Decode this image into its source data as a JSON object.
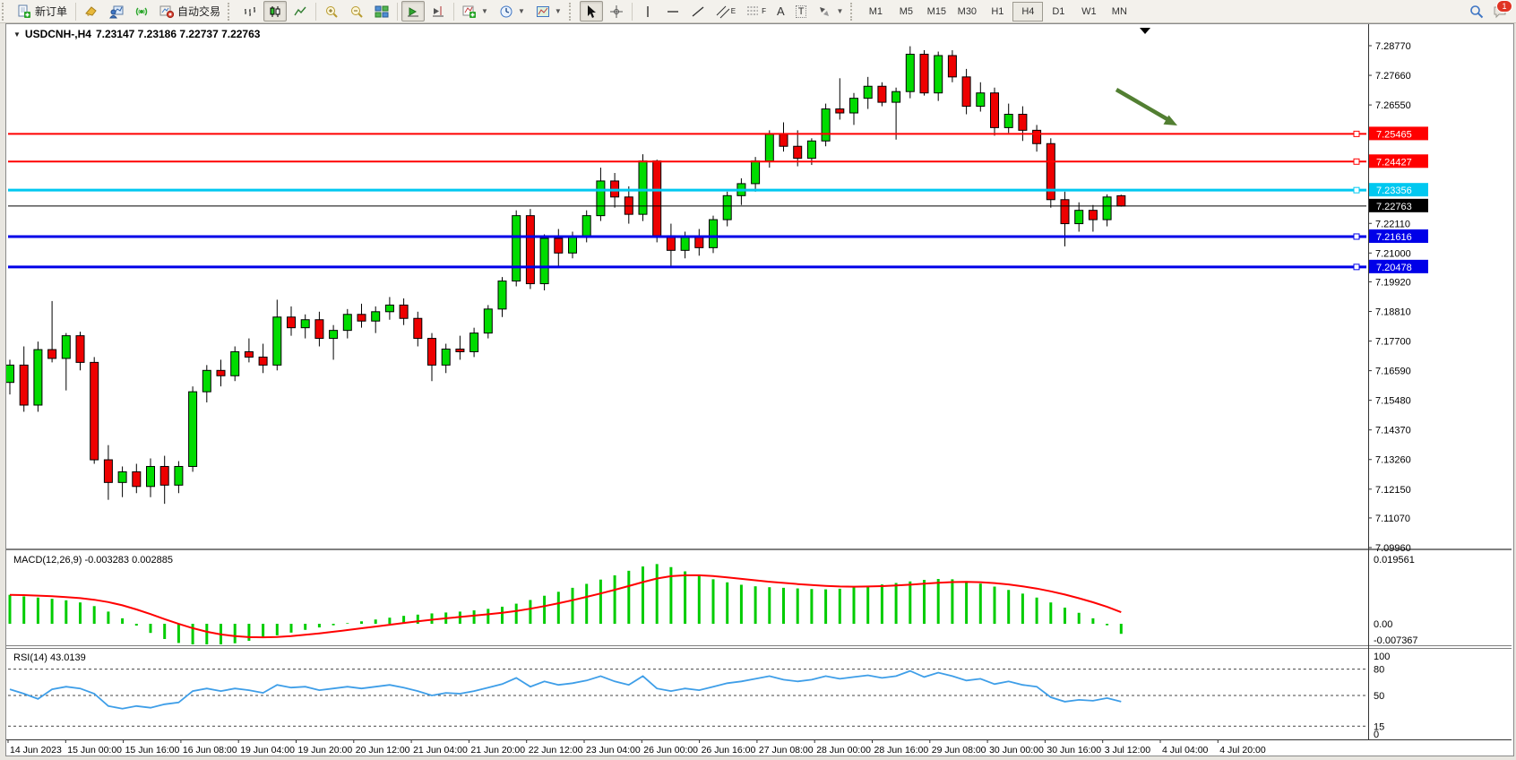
{
  "toolbar": {
    "new_order_label": "新订单",
    "autotrading_label": "自动交易",
    "text_tool_letter": "A",
    "textlabel_tool_letter": "T",
    "channel_tool_letter": "E",
    "fibo_tool_letter": "F",
    "timeframes": [
      "M1",
      "M5",
      "M15",
      "M30",
      "H1",
      "H4",
      "D1",
      "W1",
      "MN"
    ],
    "active_timeframe": "H4",
    "notification_count": "1"
  },
  "chart_data": {
    "type": "candlestick",
    "title": {
      "symbol_period": "USDCNH-,H4",
      "open": "7.23147",
      "high": "7.23186",
      "low": "7.22737",
      "close": "7.22763"
    },
    "price_axis_ticks": [
      "7.28770",
      "7.27660",
      "7.26550",
      "7.22110",
      "7.21000",
      "7.19920",
      "7.18810",
      "7.17700",
      "7.16590",
      "7.15480",
      "7.14370",
      "7.13260",
      "7.12150",
      "7.11070",
      "7.09960"
    ],
    "hlines": [
      {
        "value": "7.25465",
        "color": "#FF0000",
        "thickness": 2
      },
      {
        "value": "7.24427",
        "color": "#FF0000",
        "thickness": 2
      },
      {
        "value": "7.23356",
        "color": "#00C8F0",
        "thickness": 3
      },
      {
        "value": "7.22763",
        "color": "#000000",
        "thickness": 1
      },
      {
        "value": "7.21616",
        "color": "#0000E8",
        "thickness": 3
      },
      {
        "value": "7.20478",
        "color": "#0000E8",
        "thickness": 3
      }
    ],
    "time_axis": [
      "14 Jun 2023",
      "15 Jun 00:00",
      "15 Jun 16:00",
      "16 Jun 08:00",
      "19 Jun 04:00",
      "19 Jun 20:00",
      "20 Jun 12:00",
      "21 Jun 04:00",
      "21 Jun 20:00",
      "22 Jun 12:00",
      "23 Jun 04:00",
      "26 Jun 00:00",
      "26 Jun 16:00",
      "27 Jun 08:00",
      "28 Jun 00:00",
      "28 Jun 16:00",
      "29 Jun 08:00",
      "30 Jun 00:00",
      "30 Jun 16:00",
      "3 Jul 12:00",
      "4 Jul 04:00",
      "4 Jul 20:00"
    ],
    "colors": {
      "bull": "#00DC00",
      "bear": "#EE0000",
      "wick": "#000000",
      "macd_hist": "#00CC00",
      "macd_signal": "#FF0000",
      "rsi_line": "#3E9EE8",
      "arrow": "#527F32"
    },
    "candles": [
      [
        7.1615,
        7.17,
        7.157,
        7.168
      ],
      [
        7.168,
        7.175,
        7.1505,
        7.153
      ],
      [
        7.153,
        7.1768,
        7.1505,
        7.1738
      ],
      [
        7.1738,
        7.192,
        7.169,
        7.1705
      ],
      [
        7.1705,
        7.18,
        7.1585,
        7.179
      ],
      [
        7.179,
        7.1805,
        7.166,
        7.169
      ],
      [
        7.169,
        7.171,
        7.131,
        7.1325
      ],
      [
        7.1325,
        7.138,
        7.1175,
        7.124
      ],
      [
        7.124,
        7.13,
        7.1185,
        7.128
      ],
      [
        7.128,
        7.131,
        7.12,
        7.1225
      ],
      [
        7.1225,
        7.133,
        7.1185,
        7.13
      ],
      [
        7.13,
        7.134,
        7.116,
        7.123
      ],
      [
        7.123,
        7.132,
        7.12,
        7.13
      ],
      [
        7.13,
        7.16,
        7.128,
        7.158
      ],
      [
        7.158,
        7.168,
        7.154,
        7.166
      ],
      [
        7.166,
        7.17,
        7.16,
        7.164
      ],
      [
        7.164,
        7.175,
        7.162,
        7.173
      ],
      [
        7.173,
        7.178,
        7.169,
        7.171
      ],
      [
        7.171,
        7.176,
        7.165,
        7.168
      ],
      [
        7.168,
        7.1925,
        7.166,
        7.186
      ],
      [
        7.186,
        7.19,
        7.179,
        7.182
      ],
      [
        7.182,
        7.187,
        7.178,
        7.185
      ],
      [
        7.185,
        7.188,
        7.175,
        7.178
      ],
      [
        7.178,
        7.183,
        7.17,
        7.181
      ],
      [
        7.181,
        7.189,
        7.178,
        7.187
      ],
      [
        7.187,
        7.191,
        7.182,
        7.1845
      ],
      [
        7.1845,
        7.19,
        7.18,
        7.188
      ],
      [
        7.188,
        7.1935,
        7.185,
        7.1905
      ],
      [
        7.1905,
        7.193,
        7.183,
        7.1855
      ],
      [
        7.1855,
        7.188,
        7.175,
        7.178
      ],
      [
        7.178,
        7.18,
        7.162,
        7.168
      ],
      [
        7.168,
        7.176,
        7.165,
        7.174
      ],
      [
        7.174,
        7.179,
        7.17,
        7.173
      ],
      [
        7.173,
        7.182,
        7.171,
        7.18
      ],
      [
        7.18,
        7.1905,
        7.178,
        7.189
      ],
      [
        7.189,
        7.201,
        7.186,
        7.1995
      ],
      [
        7.1995,
        7.226,
        7.1975,
        7.224
      ],
      [
        7.224,
        7.2265,
        7.1965,
        7.1985
      ],
      [
        7.1985,
        7.217,
        7.196,
        7.2155
      ],
      [
        7.2155,
        7.219,
        7.205,
        7.21
      ],
      [
        7.21,
        7.218,
        7.208,
        7.216
      ],
      [
        7.216,
        7.226,
        7.214,
        7.224
      ],
      [
        7.224,
        7.242,
        7.222,
        7.237
      ],
      [
        7.237,
        7.24,
        7.227,
        7.231
      ],
      [
        7.231,
        7.235,
        7.221,
        7.2245
      ],
      [
        7.2245,
        7.247,
        7.222,
        7.2445
      ],
      [
        7.2445,
        7.245,
        7.214,
        7.2165
      ],
      [
        7.2165,
        7.221,
        7.205,
        7.211
      ],
      [
        7.211,
        7.218,
        7.208,
        7.216
      ],
      [
        7.216,
        7.219,
        7.209,
        7.212
      ],
      [
        7.212,
        7.224,
        7.21,
        7.2225
      ],
      [
        7.2225,
        7.233,
        7.22,
        7.2315
      ],
      [
        7.2315,
        7.238,
        7.228,
        7.236
      ],
      [
        7.236,
        7.246,
        7.233,
        7.2445
      ],
      [
        7.2445,
        7.256,
        7.242,
        7.2545
      ],
      [
        7.2545,
        7.259,
        7.248,
        7.25
      ],
      [
        7.25,
        7.256,
        7.2425,
        7.2455
      ],
      [
        7.2455,
        7.253,
        7.243,
        7.252
      ],
      [
        7.252,
        7.266,
        7.25,
        7.264
      ],
      [
        7.264,
        7.2755,
        7.26,
        7.2625
      ],
      [
        7.2625,
        7.27,
        7.258,
        7.268
      ],
      [
        7.268,
        7.276,
        7.264,
        7.2725
      ],
      [
        7.2725,
        7.274,
        7.265,
        7.2665
      ],
      [
        7.2665,
        7.272,
        7.2525,
        7.2705
      ],
      [
        7.2705,
        7.2875,
        7.268,
        7.2845
      ],
      [
        7.2845,
        7.286,
        7.269,
        7.27
      ],
      [
        7.27,
        7.2855,
        7.267,
        7.284
      ],
      [
        7.284,
        7.286,
        7.274,
        7.276
      ],
      [
        7.276,
        7.279,
        7.262,
        7.265
      ],
      [
        7.265,
        7.274,
        7.263,
        7.27
      ],
      [
        7.27,
        7.272,
        7.254,
        7.257
      ],
      [
        7.257,
        7.266,
        7.255,
        7.262
      ],
      [
        7.262,
        7.265,
        7.252,
        7.256
      ],
      [
        7.256,
        7.258,
        7.248,
        7.251
      ],
      [
        7.251,
        7.253,
        7.227,
        7.23
      ],
      [
        7.23,
        7.233,
        7.2125,
        7.221
      ],
      [
        7.221,
        7.229,
        7.218,
        7.226
      ],
      [
        7.226,
        7.228,
        7.218,
        7.2225
      ],
      [
        7.2225,
        7.232,
        7.22,
        7.231
      ],
      [
        7.23147,
        7.23186,
        7.22737,
        7.22763
      ]
    ],
    "macd": {
      "label": "MACD(12,26,9) -0.003283 0.002885",
      "axis": [
        "0.019561",
        "0.00",
        "-0.007367"
      ],
      "values": [
        0.0095,
        0.009,
        0.0086,
        0.0082,
        0.0077,
        0.007,
        0.0058,
        0.004,
        0.0018,
        -0.0006,
        -0.003,
        -0.005,
        -0.0063,
        -0.0071,
        -0.0073,
        -0.007,
        -0.0064,
        -0.0056,
        -0.0047,
        -0.0038,
        -0.0029,
        -0.002,
        -0.0012,
        -0.0005,
        0.0002,
        0.0008,
        0.0014,
        0.002,
        0.0026,
        0.003,
        0.0034,
        0.0037,
        0.004,
        0.0044,
        0.0049,
        0.0056,
        0.0066,
        0.0078,
        0.0092,
        0.0105,
        0.0118,
        0.0131,
        0.0145,
        0.0159,
        0.0174,
        0.0188,
        0.0196,
        0.0186,
        0.0172,
        0.0158,
        0.0146,
        0.0136,
        0.0128,
        0.0123,
        0.012,
        0.0118,
        0.0116,
        0.0114,
        0.0113,
        0.0115,
        0.0119,
        0.0124,
        0.0129,
        0.0134,
        0.0139,
        0.0144,
        0.0147,
        0.0146,
        0.014,
        0.0132,
        0.0122,
        0.0111,
        0.0099,
        0.0086,
        0.007,
        0.0053,
        0.0036,
        0.0018,
        -0.0005,
        -0.0033
      ]
    },
    "rsi": {
      "label": "RSI(14) 43.0139",
      "axis": [
        "100",
        "80",
        "50",
        "15",
        "0"
      ],
      "levels": [
        80,
        50,
        15
      ],
      "values": [
        57,
        52,
        46,
        57,
        60,
        58,
        52,
        38,
        35,
        38,
        36,
        40,
        42,
        55,
        58,
        55,
        58,
        56,
        53,
        62,
        59,
        60,
        56,
        58,
        60,
        58,
        60,
        62,
        59,
        55,
        50,
        53,
        52,
        55,
        59,
        63,
        70,
        60,
        66,
        62,
        64,
        67,
        72,
        66,
        62,
        72,
        58,
        55,
        58,
        56,
        60,
        64,
        66,
        69,
        72,
        68,
        66,
        68,
        72,
        69,
        71,
        73,
        70,
        72,
        78,
        71,
        76,
        72,
        67,
        69,
        63,
        66,
        62,
        60,
        48,
        43,
        45,
        44,
        47,
        43
      ]
    }
  }
}
